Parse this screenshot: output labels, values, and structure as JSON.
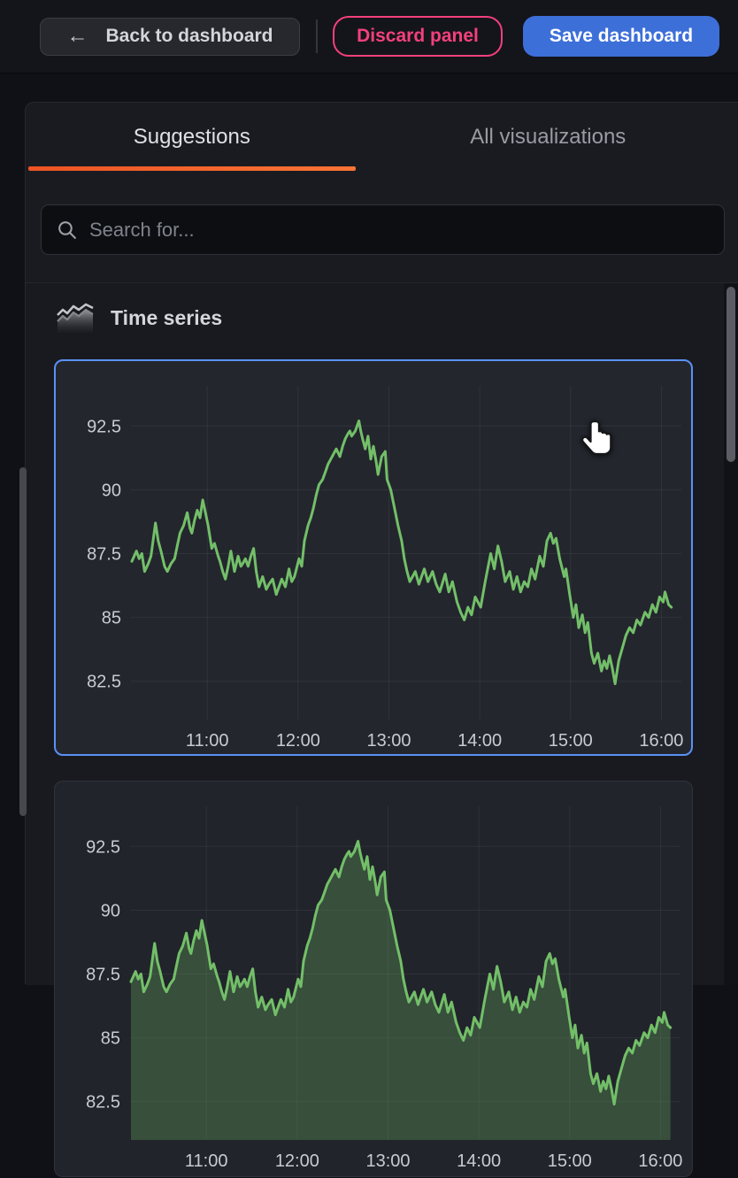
{
  "topbar": {
    "back_label": "Back to dashboard",
    "back_icon": "arrow-left",
    "discard_label": "Discard panel",
    "save_label": "Save dashboard"
  },
  "tabs": {
    "suggestions": "Suggestions",
    "all": "All visualizations"
  },
  "search": {
    "placeholder": "Search for...",
    "icon": "magnifier"
  },
  "section": {
    "title": "Time series",
    "icon": "time-series-area-chart"
  },
  "cursor": "hand-pointer",
  "colors": {
    "accent_orange": "#ec5424",
    "selected_card_blue": "#5b91f5",
    "primary_button_blue": "#3d6fd8",
    "danger_pink": "#f4407c",
    "series_green": "#73bf69",
    "axis_text": "#c9cad3"
  },
  "chart_data": {
    "type_note": "two previews of the same series",
    "x_ticks": {
      "labels": [
        "11:00",
        "12:00",
        "13:00",
        "14:00",
        "15:00",
        "16:00"
      ],
      "hours": [
        11,
        12,
        13,
        14,
        15,
        16
      ]
    },
    "y_ticks": [
      82.5,
      85,
      87.5,
      90,
      92.5
    ],
    "xlim": [
      10.16,
      16.22
    ],
    "ylim": [
      81.0,
      94.0
    ],
    "grid": true,
    "legend": false,
    "shared_series": {
      "name": "value",
      "color": "#73bf69",
      "points": [
        [
          10.17,
          87.2
        ],
        [
          10.22,
          87.6
        ],
        [
          10.25,
          87.3
        ],
        [
          10.28,
          87.5
        ],
        [
          10.31,
          86.8
        ],
        [
          10.35,
          87.1
        ],
        [
          10.38,
          87.4
        ],
        [
          10.43,
          88.7
        ],
        [
          10.46,
          88.0
        ],
        [
          10.49,
          87.6
        ],
        [
          10.53,
          87.0
        ],
        [
          10.56,
          86.8
        ],
        [
          10.6,
          87.1
        ],
        [
          10.64,
          87.3
        ],
        [
          10.67,
          87.8
        ],
        [
          10.7,
          88.3
        ],
        [
          10.74,
          88.6
        ],
        [
          10.78,
          89.1
        ],
        [
          10.81,
          88.5
        ],
        [
          10.83,
          88.3
        ],
        [
          10.86,
          88.8
        ],
        [
          10.89,
          89.2
        ],
        [
          10.92,
          88.9
        ],
        [
          10.95,
          89.6
        ],
        [
          10.98,
          89.1
        ],
        [
          11.01,
          88.6
        ],
        [
          11.05,
          87.7
        ],
        [
          11.08,
          87.9
        ],
        [
          11.12,
          87.4
        ],
        [
          11.14,
          87.2
        ],
        [
          11.17,
          86.8
        ],
        [
          11.2,
          86.5
        ],
        [
          11.23,
          87.0
        ],
        [
          11.26,
          87.6
        ],
        [
          11.3,
          86.8
        ],
        [
          11.34,
          87.4
        ],
        [
          11.37,
          87.0
        ],
        [
          11.39,
          87.1
        ],
        [
          11.42,
          87.3
        ],
        [
          11.45,
          87.0
        ],
        [
          11.48,
          87.4
        ],
        [
          11.51,
          87.7
        ],
        [
          11.54,
          86.8
        ],
        [
          11.57,
          86.2
        ],
        [
          11.61,
          86.6
        ],
        [
          11.65,
          86.1
        ],
        [
          11.68,
          86.3
        ],
        [
          11.72,
          86.5
        ],
        [
          11.76,
          85.9
        ],
        [
          11.79,
          86.2
        ],
        [
          11.82,
          86.5
        ],
        [
          11.86,
          86.2
        ],
        [
          11.9,
          86.9
        ],
        [
          11.93,
          86.4
        ],
        [
          11.96,
          86.6
        ],
        [
          12.01,
          87.3
        ],
        [
          12.04,
          87.0
        ],
        [
          12.07,
          88.0
        ],
        [
          12.11,
          88.6
        ],
        [
          12.14,
          88.9
        ],
        [
          12.17,
          89.3
        ],
        [
          12.2,
          89.8
        ],
        [
          12.23,
          90.2
        ],
        [
          12.27,
          90.4
        ],
        [
          12.3,
          90.7
        ],
        [
          12.33,
          91.0
        ],
        [
          12.36,
          91.2
        ],
        [
          12.39,
          91.4
        ],
        [
          12.42,
          91.6
        ],
        [
          12.46,
          91.3
        ],
        [
          12.49,
          91.7
        ],
        [
          12.52,
          92.0
        ],
        [
          12.55,
          92.2
        ],
        [
          12.57,
          92.3
        ],
        [
          12.59,
          92.1
        ],
        [
          12.63,
          92.3
        ],
        [
          12.67,
          92.7
        ],
        [
          12.69,
          92.3
        ],
        [
          12.71,
          92.0
        ],
        [
          12.74,
          91.6
        ],
        [
          12.77,
          92.1
        ],
        [
          12.8,
          91.2
        ],
        [
          12.83,
          91.7
        ],
        [
          12.86,
          91.1
        ],
        [
          12.88,
          90.6
        ],
        [
          12.92,
          91.3
        ],
        [
          12.96,
          91.5
        ],
        [
          12.98,
          90.4
        ],
        [
          13.02,
          90.0
        ],
        [
          13.06,
          89.3
        ],
        [
          13.1,
          88.6
        ],
        [
          13.14,
          88.0
        ],
        [
          13.17,
          87.3
        ],
        [
          13.2,
          86.8
        ],
        [
          13.23,
          86.4
        ],
        [
          13.26,
          86.6
        ],
        [
          13.29,
          86.8
        ],
        [
          13.33,
          86.3
        ],
        [
          13.36,
          86.6
        ],
        [
          13.39,
          86.9
        ],
        [
          13.43,
          86.4
        ],
        [
          13.48,
          86.8
        ],
        [
          13.52,
          86.3
        ],
        [
          13.56,
          86.0
        ],
        [
          13.62,
          86.7
        ],
        [
          13.66,
          86.0
        ],
        [
          13.7,
          86.4
        ],
        [
          13.75,
          85.6
        ],
        [
          13.79,
          85.2
        ],
        [
          13.83,
          84.9
        ],
        [
          13.87,
          85.4
        ],
        [
          13.91,
          85.1
        ],
        [
          13.95,
          85.8
        ],
        [
          14.01,
          85.4
        ],
        [
          14.06,
          86.4
        ],
        [
          14.12,
          87.5
        ],
        [
          14.16,
          86.9
        ],
        [
          14.2,
          87.8
        ],
        [
          14.24,
          87.2
        ],
        [
          14.28,
          86.4
        ],
        [
          14.33,
          86.8
        ],
        [
          14.37,
          86.1
        ],
        [
          14.41,
          86.6
        ],
        [
          14.45,
          86.0
        ],
        [
          14.49,
          86.4
        ],
        [
          14.53,
          86.2
        ],
        [
          14.57,
          86.9
        ],
        [
          14.61,
          86.5
        ],
        [
          14.66,
          87.4
        ],
        [
          14.7,
          87.0
        ],
        [
          14.74,
          88.0
        ],
        [
          14.78,
          88.3
        ],
        [
          14.81,
          87.9
        ],
        [
          14.84,
          88.1
        ],
        [
          14.88,
          87.3
        ],
        [
          14.93,
          86.6
        ],
        [
          14.95,
          86.9
        ],
        [
          14.99,
          85.9
        ],
        [
          15.03,
          85.0
        ],
        [
          15.06,
          85.5
        ],
        [
          15.09,
          84.6
        ],
        [
          15.13,
          85.1
        ],
        [
          15.16,
          84.4
        ],
        [
          15.19,
          84.8
        ],
        [
          15.23,
          83.6
        ],
        [
          15.26,
          83.2
        ],
        [
          15.3,
          83.6
        ],
        [
          15.34,
          82.9
        ],
        [
          15.37,
          83.3
        ],
        [
          15.4,
          83.0
        ],
        [
          15.43,
          83.5
        ],
        [
          15.46,
          83.0
        ],
        [
          15.49,
          82.4
        ],
        [
          15.53,
          83.3
        ],
        [
          15.57,
          83.8
        ],
        [
          15.61,
          84.3
        ],
        [
          15.65,
          84.6
        ],
        [
          15.69,
          84.4
        ],
        [
          15.73,
          84.9
        ],
        [
          15.77,
          84.7
        ],
        [
          15.82,
          85.2
        ],
        [
          15.86,
          85.0
        ],
        [
          15.9,
          85.5
        ],
        [
          15.94,
          85.2
        ],
        [
          15.98,
          85.8
        ],
        [
          16.02,
          85.6
        ],
        [
          16.04,
          86.0
        ],
        [
          16.08,
          85.5
        ],
        [
          16.11,
          85.4
        ]
      ]
    },
    "charts": [
      {
        "type": "line",
        "selected": true,
        "fill_opacity": 0
      },
      {
        "type": "area",
        "selected": false,
        "fill_opacity": 0.28
      }
    ]
  }
}
